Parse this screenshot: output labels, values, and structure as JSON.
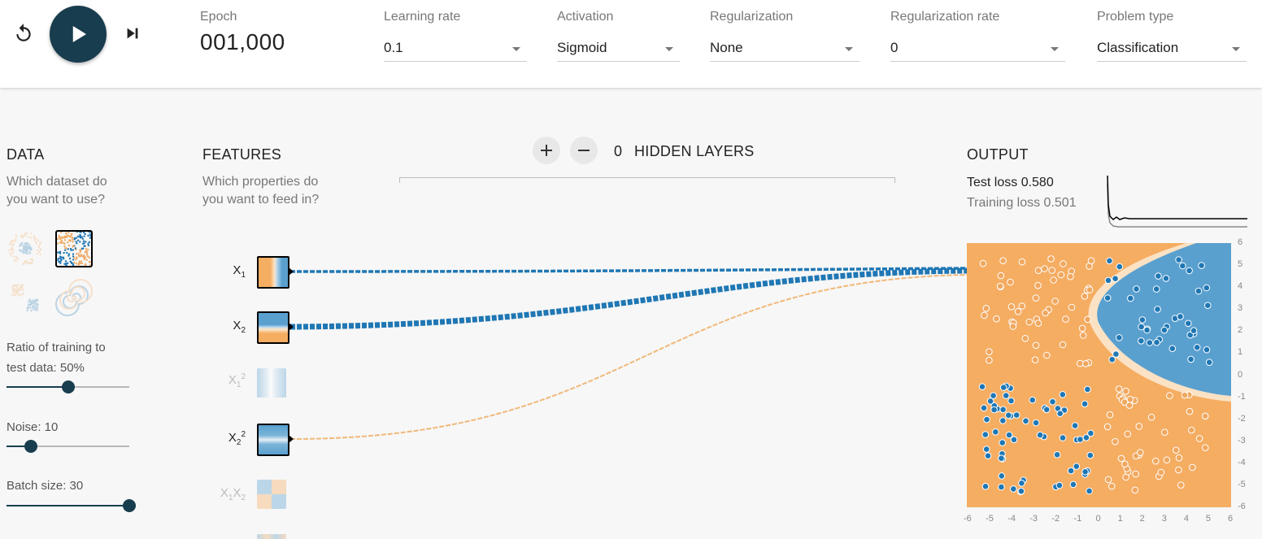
{
  "header": {
    "epoch_label": "Epoch",
    "epoch_value": "001,000",
    "learning_rate": {
      "label": "Learning rate",
      "value": "0.1"
    },
    "activation": {
      "label": "Activation",
      "value": "Sigmoid"
    },
    "regularization": {
      "label": "Regularization",
      "value": "None"
    },
    "regularization_rate": {
      "label": "Regularization rate",
      "value": "0"
    },
    "problem_type": {
      "label": "Problem type",
      "value": "Classification"
    }
  },
  "icons": {
    "reset": "reset-icon",
    "play": "play-icon",
    "step": "step-forward-icon",
    "add_layer": "plus-icon",
    "remove_layer": "minus-icon"
  },
  "data_panel": {
    "title": "DATA",
    "subtitle_line1": "Which dataset do",
    "subtitle_line2": "you want to use?",
    "datasets": [
      {
        "name": "circle",
        "selected": false
      },
      {
        "name": "xor",
        "selected": true
      },
      {
        "name": "gaussian",
        "selected": false
      },
      {
        "name": "spiral",
        "selected": false
      }
    ],
    "ratio_label_line1": "Ratio of training to",
    "ratio_label_line2": "test data:  50%",
    "ratio_value": 50,
    "ratio_fraction": 0.5,
    "noise_label": "Noise:  10",
    "noise_value": 10,
    "noise_fraction": 0.2,
    "batch_label": "Batch size:  30",
    "batch_value": 30,
    "batch_fraction": 1.0
  },
  "features_panel": {
    "title": "FEATURES",
    "subtitle_line1": "Which properties do",
    "subtitle_line2": "you want to feed in?",
    "features": [
      {
        "id": "x1",
        "base": "X",
        "sub": "1",
        "sup": "",
        "active": true
      },
      {
        "id": "x2",
        "base": "X",
        "sub": "2",
        "sup": "",
        "active": true
      },
      {
        "id": "x1sq",
        "base": "X",
        "sub": "1",
        "sup": "2",
        "active": false
      },
      {
        "id": "x2sq",
        "base": "X",
        "sub": "2",
        "sup": "2",
        "active": true
      },
      {
        "id": "x1x2",
        "base": "X",
        "sub": "1",
        "sup": "",
        "base2": "X",
        "sub2": "2",
        "active": false
      }
    ]
  },
  "network": {
    "hidden_layer_count": "0",
    "hidden_layers_label": "HIDDEN LAYERS"
  },
  "output_panel": {
    "title": "OUTPUT",
    "test_loss": "Test loss 0.580",
    "training_loss": "Training loss 0.501",
    "axis_ticks": [
      "-6",
      "-5",
      "-4",
      "-3",
      "-2",
      "-1",
      "0",
      "1",
      "2",
      "3",
      "4",
      "5",
      "6"
    ]
  },
  "colors": {
    "blue": "#1f77b4",
    "orange": "#f0a860",
    "dark": "#183d4e",
    "heat_blue": "#5aa0cf",
    "heat_orange": "#f5ad62"
  }
}
